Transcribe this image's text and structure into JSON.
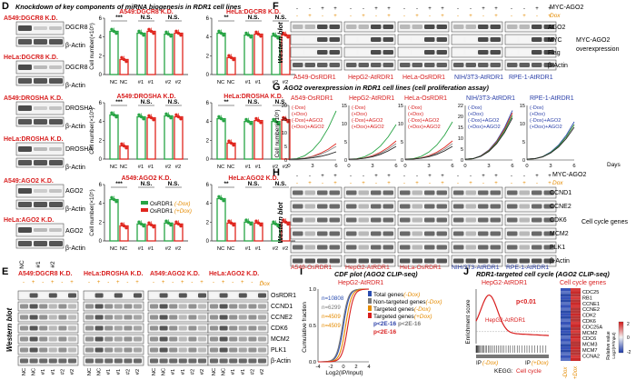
{
  "panel_letters": [
    "D",
    "E",
    "F",
    "G",
    "H",
    "I",
    "J"
  ],
  "panelD": {
    "title": "Knockdown of key components of miRNA biogenesis in RDR1 cell lines",
    "blots": [
      {
        "line": "A549:",
        "gene": "DGCR8 K.D.",
        "labels": [
          "DGCR8",
          "β-Actin"
        ]
      },
      {
        "line": "HeLa:",
        "gene": "DGCR8 K.D.",
        "labels": [
          "DGCR8",
          "β-Actin"
        ]
      },
      {
        "line": "A549:",
        "gene": "DROSHA K.D.",
        "labels": [
          "DROSHA",
          "β-Actin"
        ]
      },
      {
        "line": "HeLa:",
        "gene": "DROSHA K.D.",
        "labels": [
          "DROSHA",
          "β-Actin"
        ]
      },
      {
        "line": "A549:",
        "gene": "AGO2 K.D.",
        "labels": [
          "AGO2",
          "β-Actin"
        ]
      },
      {
        "line": "HeLa:",
        "gene": "AGO2 K.D.",
        "labels": [
          "AGO2",
          "β-Actin"
        ]
      }
    ],
    "lane_labels": [
      "NC",
      "#1",
      "#2"
    ],
    "ylabel": "Cell number(×10⁵)",
    "sig": [
      "***",
      "N.S.",
      "N.S.",
      "**",
      "N.S.",
      "N.S."
    ],
    "legend": [
      "OsRDR1",
      "OsRDR1"
    ],
    "legend_tags": [
      "(-Dox)",
      "(+Dox)"
    ]
  },
  "chart_data": [
    {
      "type": "bar",
      "title": "A549:DGCR8 K.D.",
      "categories": [
        "NC",
        "NC",
        "#1",
        "#1",
        "#2",
        "#2"
      ],
      "values": [
        4.6,
        1.6,
        4.4,
        4.6,
        4.3,
        4.4
      ],
      "ylim": [
        0,
        6
      ],
      "yticks": [
        0,
        2,
        4,
        6
      ],
      "ylabel": "Cell number(×10⁵)"
    },
    {
      "type": "bar",
      "title": "HeLa:DGCR8 K.D.",
      "categories": [
        "NC",
        "NC",
        "#1",
        "#1",
        "#2",
        "#2"
      ],
      "values": [
        4.4,
        1.8,
        4.2,
        4.3,
        4.1,
        4.2
      ],
      "ylim": [
        0,
        6
      ],
      "yticks": [
        0,
        2,
        4,
        6
      ]
    },
    {
      "type": "bar",
      "title": "A549:DROSHA K.D.",
      "categories": [
        "NC",
        "NC",
        "#1",
        "#1",
        "#2",
        "#2"
      ],
      "values": [
        4.7,
        1.4,
        4.5,
        4.4,
        4.6,
        4.5
      ],
      "ylim": [
        0,
        6
      ],
      "yticks": [
        0,
        2,
        4,
        6
      ],
      "ylabel": "Cell number(×10⁵)"
    },
    {
      "type": "bar",
      "title": "HeLa:DROSHA K.D.",
      "categories": [
        "NC",
        "NC",
        "#1",
        "#1",
        "#2",
        "#2"
      ],
      "values": [
        4.3,
        1.7,
        4.0,
        4.1,
        4.0,
        4.2
      ],
      "ylim": [
        0,
        6
      ],
      "yticks": [
        0,
        2,
        4,
        6
      ]
    },
    {
      "type": "bar",
      "title": "A549:AGO2 K.D.",
      "categories": [
        "NC",
        "NC",
        "#1",
        "#1",
        "#2",
        "#2"
      ],
      "values": [
        4.4,
        1.6,
        1.8,
        1.7,
        1.9,
        1.8
      ],
      "ylim": [
        0,
        6
      ],
      "yticks": [
        0,
        2,
        4,
        6
      ],
      "ylabel": "Cell number(×10⁵)"
    },
    {
      "type": "bar",
      "title": "HeLa:AGO2 K.D.",
      "categories": [
        "NC",
        "NC",
        "#1",
        "#1",
        "#2",
        "#2"
      ],
      "values": [
        4.5,
        1.9,
        2.0,
        1.9,
        1.8,
        2.0
      ],
      "ylim": [
        0,
        6
      ],
      "yticks": [
        0,
        2,
        4,
        6
      ]
    }
  ],
  "panelE": {
    "groups": [
      {
        "line": "A549:",
        "gene": "DGCR8 K.D."
      },
      {
        "line": "HeLa:",
        "gene": "DROSHA K.D."
      },
      {
        "line": "A549:",
        "gene": "AGO2 K.D."
      },
      {
        "line": "HeLa:",
        "gene": "AGO2 K.D."
      }
    ],
    "dox_label": "Dox",
    "rows": [
      "OsRDR1",
      "CCND1",
      "CCNE2",
      "CDK6",
      "MCM2",
      "PLK1",
      "β-Actin"
    ],
    "vertical": "Western blot",
    "lanes": [
      "NC",
      "NC",
      "#1",
      "#1",
      "#2",
      "#2"
    ]
  },
  "panelF": {
    "header": "MYC-AGO2",
    "dox_label": "Dox",
    "rows": [
      "AGO2",
      "MYC",
      "Flag",
      "β-Actin"
    ],
    "right": [
      "MYC-AGO2",
      "overexpression"
    ],
    "vertical": "Western blot",
    "lines": [
      "A549-OsRDR1",
      "HepG2-AtRDR1",
      "HeLa-OsRDR1",
      "NIH/3T3-AtRDR1",
      "RPE-1-AtRDR1"
    ]
  },
  "panelG": {
    "title": "AGO2 overexpression in RDR1 cell lines (cell proliferation assay)",
    "ylabel": "Cell number(×10⁵)",
    "xlabel": "Days",
    "legend": [
      "(-Dox)",
      "(+Dox)",
      "(-Dox)+AGO2",
      "(+Dox)+AGO2"
    ],
    "yticks": [
      [
        "0",
        "5",
        "10",
        "15",
        "20"
      ],
      [
        "0",
        "5",
        "10",
        "15"
      ],
      [
        "0",
        "5",
        "10",
        "15"
      ],
      [
        "0",
        "5",
        "10",
        "15",
        "20",
        "22"
      ],
      [
        "0",
        "5",
        "10",
        "15"
      ]
    ],
    "xticks": [
      "0",
      "3",
      "6"
    ]
  },
  "panelH": {
    "header": "MYC-AGO2",
    "dox_label": "Dox",
    "rows": [
      "CCND1",
      "CCNE2",
      "CDK6",
      "MCM2",
      "PLK1",
      "β-Actin"
    ],
    "right": "Cell cycle genes",
    "vertical": "Western blot"
  },
  "panelI": {
    "title": "CDF plot (AGO2 CLIP-seq)",
    "line": "HepG2-AtRDR1",
    "ns": [
      "n=10808",
      "n=6299",
      "n=4509",
      "n=4509"
    ],
    "legend": [
      "Total genes",
      "Non-targeted genes",
      "Targeted genes",
      "Targeted genes"
    ],
    "legend_tags": [
      "(-Dox)",
      "(-Dox)",
      "(-Dox)",
      "(+Dox)"
    ],
    "pvals": [
      "p<2E-16",
      "p<2E-16",
      "p<2E-16"
    ],
    "ylabel": "Cumulative fraction",
    "xlabel": "Log2(IP/Input)",
    "yticks": [
      "0.0",
      "0.5",
      "1.0"
    ],
    "xticks": [
      "-4",
      "-2",
      "0",
      "2",
      "4"
    ]
  },
  "panelJ": {
    "title": "RDR1-targeted cell cycle (AGO2 CLIP-seq)",
    "line": "HepG2-AtRDR1",
    "pval": "p<0.01",
    "inner_label": "HepG2-AtRDR1",
    "ylabel": "Enrichment score",
    "ip_left": "IP",
    "ip_left_tag": "(-Dox)",
    "ip_right": "IP",
    "ip_right_tag": "(+Dox)",
    "kegg": "KEGG:",
    "kegg_term": "Cell cycle",
    "gene_header": "Cell cycle genes",
    "genes": [
      "CDC25",
      "RB1",
      "CCNE1",
      "CCNE2",
      "CDK2",
      "CDK6",
      "CDC25A",
      "MCM2",
      "CDC6",
      "MCM3",
      "MCM7",
      "CCNA2"
    ],
    "cols": [
      "-Dox",
      "+Dox"
    ],
    "scale_title": "Relative value",
    "scale_sub": "Log2(IP/Input)",
    "scale_ticks": [
      "-2",
      "0",
      "2"
    ],
    "colors": {
      "low": "#2a4db0",
      "high": "#d81e1e"
    }
  }
}
